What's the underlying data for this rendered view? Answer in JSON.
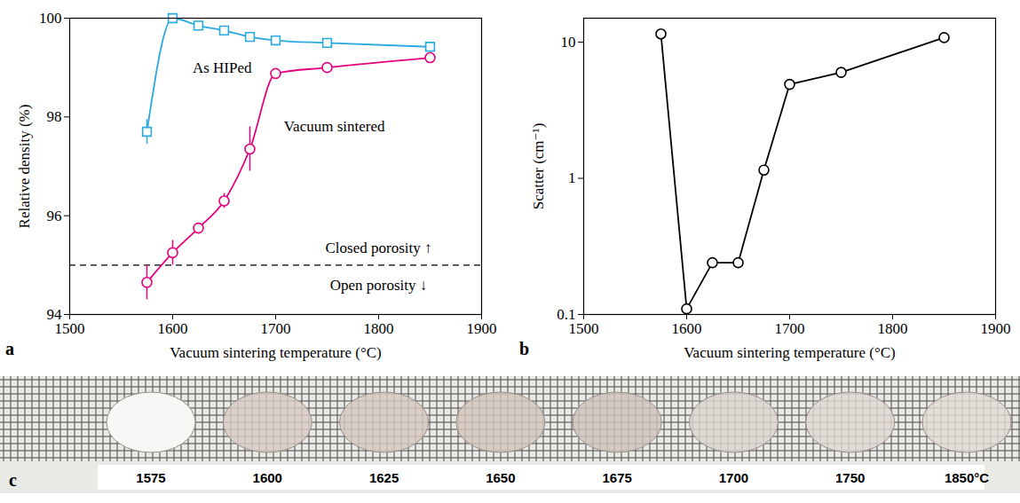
{
  "chart_data": [
    {
      "type": "line",
      "panel_label": "a",
      "x_label": "Vacuum sintering temperature (°C)",
      "y_label": "Relative density (%)",
      "x": [
        1575,
        1600,
        1625,
        1650,
        1675,
        1700,
        1750,
        1850
      ],
      "xlim": [
        1500,
        1900
      ],
      "xticks": [
        1500,
        1600,
        1700,
        1800,
        1900
      ],
      "ylim": [
        94,
        100
      ],
      "yticks": [
        94,
        96,
        98,
        100
      ],
      "line_style": "smooth",
      "series": [
        {
          "name": "As HIPed",
          "color": "#29a9e0",
          "marker": "square",
          "values": [
            97.7,
            100.0,
            99.85,
            99.75,
            99.62,
            99.55,
            99.5,
            99.42
          ],
          "errors": [
            0.25,
            0.1,
            null,
            null,
            null,
            null,
            null,
            null
          ],
          "label_at": {
            "x": 1648,
            "y": 99.0
          }
        },
        {
          "name": "Vacuum sintered",
          "color": "#e5007e",
          "marker": "circle",
          "values": [
            94.65,
            95.25,
            95.75,
            96.3,
            97.35,
            98.88,
            99.0,
            99.2
          ],
          "errors": [
            0.35,
            0.25,
            null,
            0.15,
            0.45,
            null,
            null,
            null
          ],
          "label_at": {
            "x": 1757,
            "y": 97.8
          }
        }
      ],
      "reference_line": {
        "value": 95,
        "line_style": "dashed"
      },
      "annotations": [
        {
          "text": "Closed porosity ↑",
          "x": 1800,
          "y": 95.35
        },
        {
          "text": "Open porosity ↓",
          "x": 1800,
          "y": 94.6
        }
      ]
    },
    {
      "type": "line",
      "panel_label": "b",
      "x_label": "Vacuum sintering temperature (°C)",
      "y_label": "Scatter (cm⁻¹)",
      "x": [
        1575,
        1600,
        1625,
        1650,
        1675,
        1700,
        1750,
        1850
      ],
      "values": [
        11.5,
        0.11,
        0.24,
        0.24,
        1.15,
        4.9,
        6.0,
        10.8
      ],
      "color": "#000000",
      "marker": "circle",
      "line_style": "solid",
      "log": "y",
      "xlim": [
        1500,
        1900
      ],
      "xticks": [
        1500,
        1600,
        1700,
        1800,
        1900
      ],
      "ylim": [
        0.1,
        15
      ],
      "yticks": [
        0.1,
        1,
        10
      ]
    },
    {
      "type": "photo",
      "panel_label": "c",
      "categories": [
        "1575",
        "1600",
        "1625",
        "1650",
        "1675",
        "1700",
        "1750",
        "1850°C"
      ],
      "colors": [
        "#f6f6f4",
        "#d8ccc4",
        "#d6c9c0",
        "#d2c6bd",
        "#cdc3bb",
        "#dcd5cf",
        "#ded8d2",
        "#e2dbd4"
      ]
    }
  ]
}
